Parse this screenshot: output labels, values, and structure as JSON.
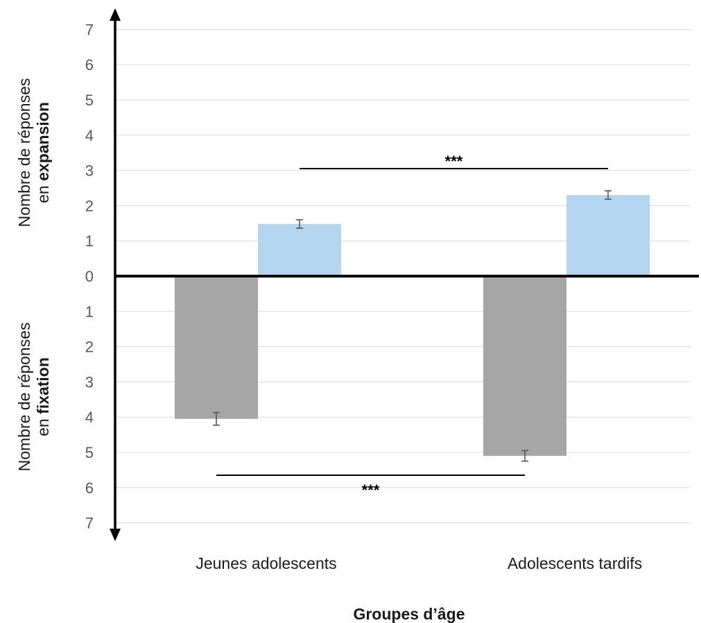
{
  "chart_data": {
    "type": "bar",
    "orientation": "diverging-vertical",
    "categories": [
      "Jeunes adolescents",
      "Adolescents tardifs"
    ],
    "series": [
      {
        "name": "",
        "direction": "down",
        "color": "#a6a6a6",
        "values": [
          4.05,
          5.1
        ],
        "errors": [
          0.18,
          0.15
        ]
      },
      {
        "name": "",
        "direction": "up",
        "color": "#b4d5ef",
        "values": [
          1.48,
          2.3
        ],
        "errors": [
          0.12,
          0.12
        ]
      }
    ],
    "xlabel": "Groupes d’âge",
    "ylabel_top": {
      "line1": "Nombre de réponses",
      "line2_prefix": "en ",
      "line2_bold": "expansion"
    },
    "ylabel_bottom": {
      "line1": "Nombre de réponses",
      "line2_prefix": "en ",
      "line2_bold": "fixation"
    },
    "ylim": [
      -7,
      7
    ],
    "ytick_values": [
      7,
      6,
      5,
      4,
      3,
      2,
      1,
      0,
      -1,
      -2,
      -3,
      -4,
      -5,
      -6,
      -7
    ],
    "ytick_labels": [
      "7",
      "6",
      "5",
      "4",
      "3",
      "2",
      "1",
      "0",
      "1",
      "2",
      "3",
      "4",
      "5",
      "6",
      "7"
    ],
    "grid": true,
    "legend": "none",
    "significance": [
      {
        "label": "***",
        "series": "up",
        "y": 3.05
      },
      {
        "label": "***",
        "series": "down",
        "y": -5.65
      }
    ]
  }
}
